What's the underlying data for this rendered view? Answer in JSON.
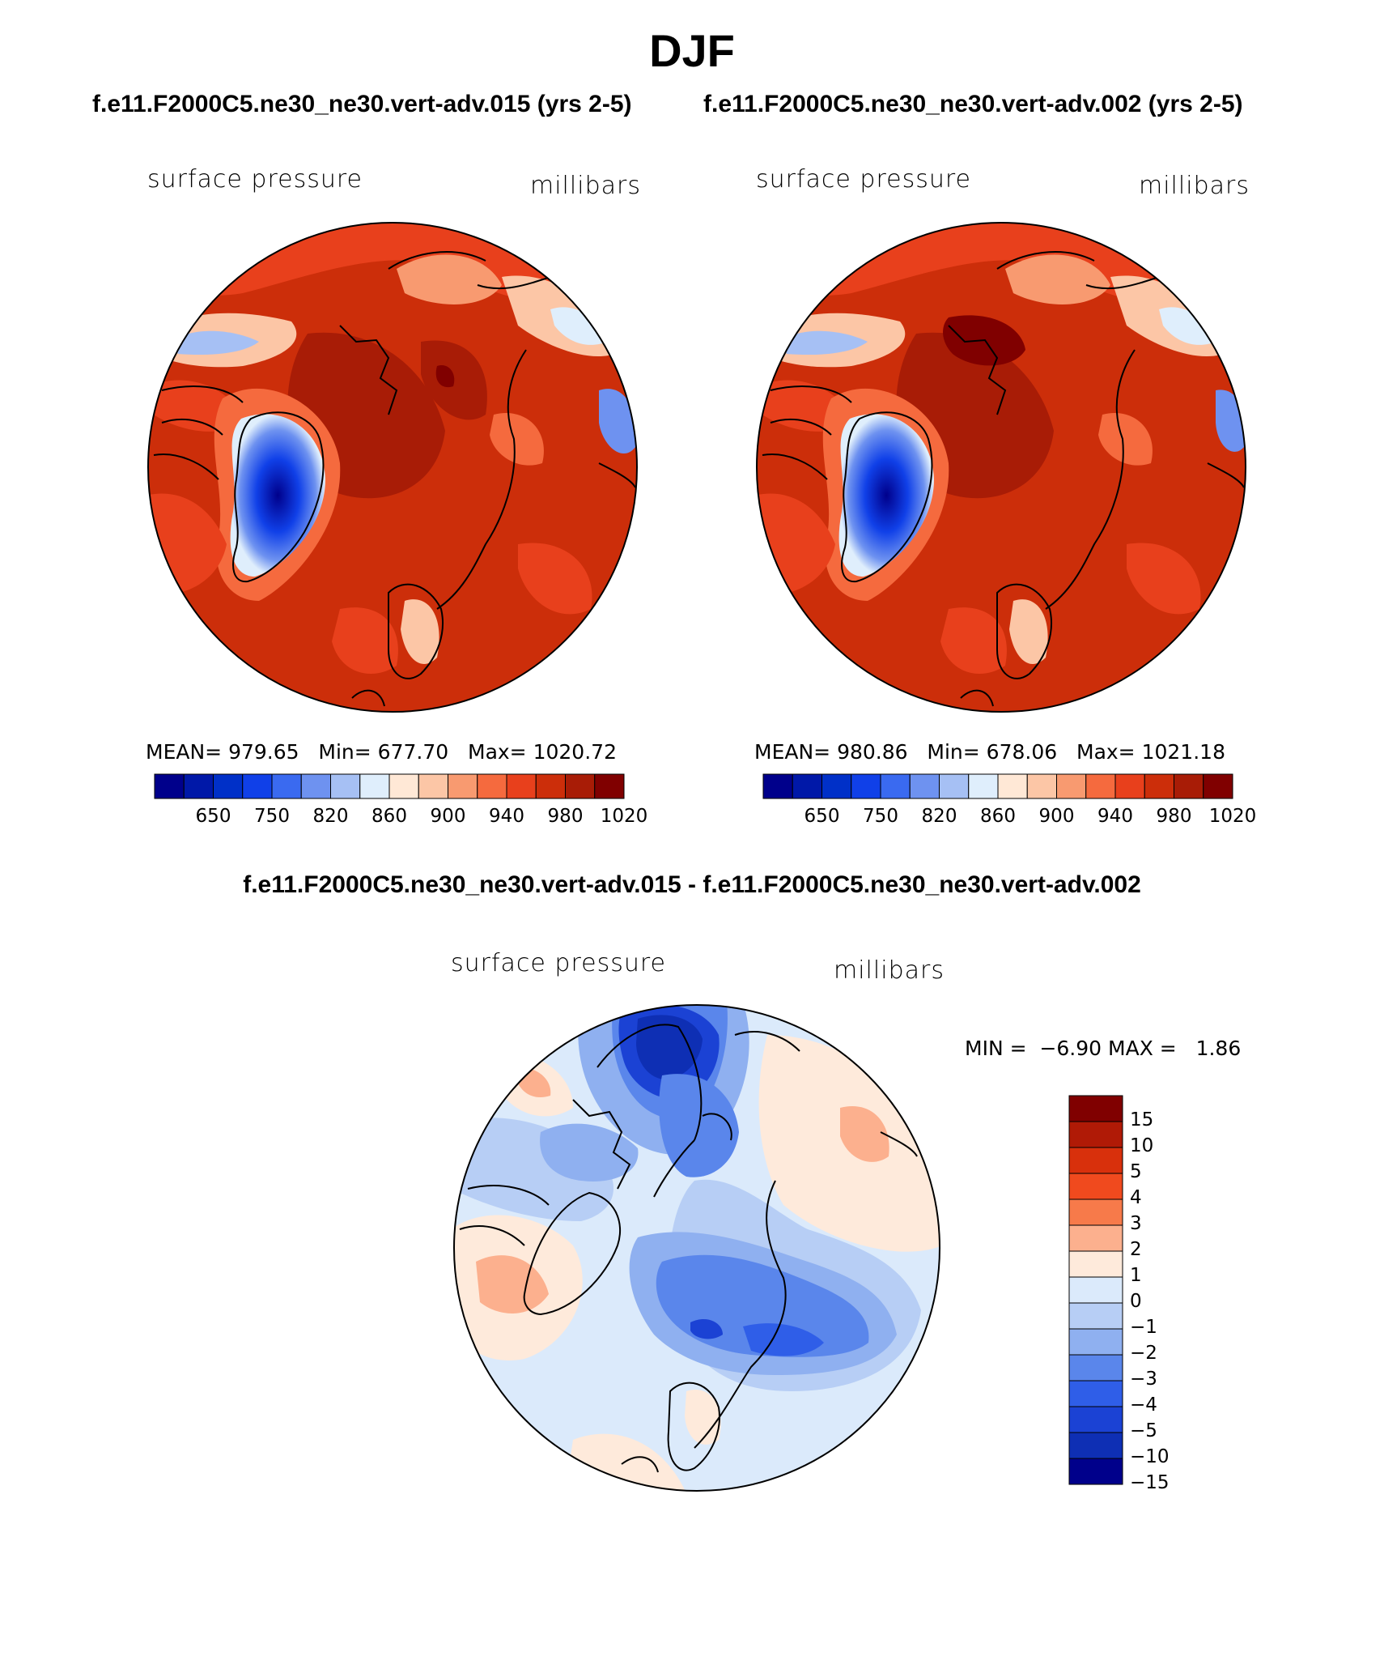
{
  "main": {
    "season": "DJF",
    "case_a_title": "f.e11.F2000C5.ne30_ne30.vert-adv.015 (yrs 2-5)",
    "case_b_title": "f.e11.F2000C5.ne30_ne30.vert-adv.002 (yrs 2-5)",
    "diff_title": "f.e11.F2000C5.ne30_ne30.vert-adv.015 - f.e11.F2000C5.ne30_ne30.vert-adv.002"
  },
  "colors": {
    "abs_levels": [
      "#00008b",
      "#0018a8",
      "#0030c8",
      "#1040e8",
      "#3a6af0",
      "#6e92f0",
      "#a6c0f4",
      "#dfeefc",
      "#ffe8d6",
      "#fcc6a6",
      "#f89a70",
      "#f56a3e",
      "#e8401c",
      "#cc2e0a",
      "#a81c06",
      "#800000"
    ],
    "diff_levels": [
      "#800000",
      "#b01a06",
      "#d8300c",
      "#f04a1e",
      "#f77a4a",
      "#fcb08e",
      "#feeadb",
      "#dbeafb",
      "#b7cef5",
      "#8fb0f0",
      "#5a86eb",
      "#2f5ee8",
      "#1b42d4",
      "#0e2fb4",
      "#00008b"
    ],
    "land": "#000000"
  },
  "chart_data": [
    {
      "type": "heatmap",
      "projection": "north-polar-stereographic",
      "panel": "case-a",
      "left_label": "surface pressure",
      "right_label": "millibars",
      "stats": {
        "mean": "979.65",
        "min": "677.70",
        "max": "1020.72"
      },
      "stat_labels": {
        "mean": "MEAN=",
        "min": "Min=",
        "max": "Max="
      },
      "colorbar_ticks": [
        "650",
        "750",
        "820",
        "860",
        "900",
        "940",
        "980",
        "1020"
      ]
    },
    {
      "type": "heatmap",
      "projection": "north-polar-stereographic",
      "panel": "case-b",
      "left_label": "surface pressure",
      "right_label": "millibars",
      "stats": {
        "mean": "980.86",
        "min": "678.06",
        "max": "1021.18"
      },
      "stat_labels": {
        "mean": "MEAN=",
        "min": "Min=",
        "max": "Max="
      },
      "colorbar_ticks": [
        "650",
        "750",
        "820",
        "860",
        "900",
        "940",
        "980",
        "1020"
      ]
    },
    {
      "type": "heatmap",
      "projection": "north-polar-stereographic",
      "panel": "difference",
      "left_label": "surface pressure",
      "right_label": "millibars",
      "stats": {
        "min": "−6.90",
        "max": "1.86"
      },
      "stat_labels": {
        "min": "MIN =",
        "max": "MAX ="
      },
      "colorbar_ticks": [
        "15",
        "10",
        "5",
        "4",
        "3",
        "2",
        "1",
        "0",
        "−1",
        "−2",
        "−3",
        "−4",
        "−5",
        "−10",
        "−15"
      ]
    }
  ]
}
